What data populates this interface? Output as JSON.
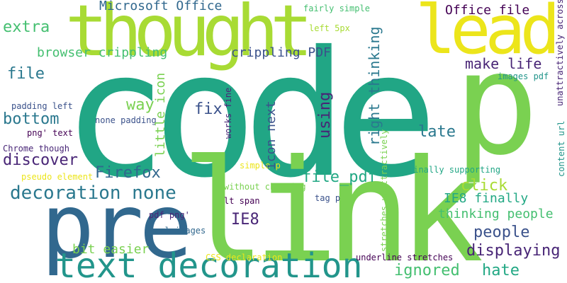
{
  "palette": {
    "teal": "#21a685",
    "lightgreen": "#7ad151",
    "lime": "#a8db34",
    "yellow": "#ece51b",
    "darkblue": "#31688e",
    "navy": "#3b528b",
    "purple": "#482576",
    "darkpurple": "#440154",
    "midteal": "#2a788e",
    "cyan": "#22a884",
    "green": "#44bf70"
  },
  "words": [
    {
      "text": "code",
      "color": "#21a685"
    },
    {
      "text": "p",
      "color": "#7ad151"
    },
    {
      "text": "link",
      "color": "#7ad151"
    },
    {
      "text": "pre",
      "color": "#31688e"
    },
    {
      "text": "thought",
      "color": "#a8db34"
    },
    {
      "text": "lead",
      "color": "#ece51b"
    },
    {
      "text": "text decoration",
      "color": "#22958b"
    },
    {
      "text": "decoration none",
      "color": "#2a788e"
    },
    {
      "text": "Microsoft Office",
      "color": "#31688e"
    },
    {
      "text": "Office file",
      "color": "#440154"
    },
    {
      "text": "crippling PDF",
      "color": "#3b528b"
    },
    {
      "text": "browser crippling",
      "color": "#44bf70"
    },
    {
      "text": "extra",
      "color": "#44bf70"
    },
    {
      "text": "file",
      "color": "#2a788e"
    },
    {
      "text": "bottom",
      "color": "#2a788e"
    },
    {
      "text": "discover",
      "color": "#482576"
    },
    {
      "text": "Firefox",
      "color": "#31688e"
    },
    {
      "text": "way",
      "color": "#7ad151"
    },
    {
      "text": "fix",
      "color": "#3b528b"
    },
    {
      "text": "late",
      "color": "#2a788e"
    },
    {
      "text": "make life",
      "color": "#482576"
    },
    {
      "text": "file_pdf",
      "color": "#22a884"
    },
    {
      "text": "click",
      "color": "#a8db34"
    },
    {
      "text": "IE8 finally",
      "color": "#22a884"
    },
    {
      "text": "IE8",
      "color": "#482576"
    },
    {
      "text": "thinking people",
      "color": "#44bf70"
    },
    {
      "text": "people",
      "color": "#3b528b"
    },
    {
      "text": "displaying",
      "color": "#482576"
    },
    {
      "text": "ignored",
      "color": "#44bf70"
    },
    {
      "text": "hate",
      "color": "#22a884"
    },
    {
      "text": "bit easier",
      "color": "#7ad151"
    },
    {
      "text": "fairly simple",
      "color": "#44bf70"
    },
    {
      "text": "left 5px",
      "color": "#a8db34"
    },
    {
      "text": "images pdf",
      "color": "#22958b"
    },
    {
      "text": "padding left",
      "color": "#3b528b"
    },
    {
      "text": "none padding",
      "color": "#3b528b"
    },
    {
      "text": "png' text",
      "color": "#440154"
    },
    {
      "text": "Chrome though",
      "color": "#482576"
    },
    {
      "text": "pseudo element",
      "color": "#ece51b"
    },
    {
      "text": "simple p",
      "color": "#ece51b"
    },
    {
      "text": "without cheating",
      "color": "#7ad151"
    },
    {
      "text": "lt span",
      "color": "#440154"
    },
    {
      "text": "tag p",
      "color": "#3b528b"
    },
    {
      "text": "finally supporting",
      "color": "#21a685"
    },
    {
      "text": "pdf png'",
      "color": "#482576"
    },
    {
      "text": "url images",
      "color": "#31688e"
    },
    {
      "text": "CSS declaration",
      "color": "#ece51b"
    },
    {
      "text": "underline stretches",
      "color": "#440154"
    },
    {
      "text": "right thinking",
      "color": "#2a788e"
    },
    {
      "text": "little icon",
      "color": "#7ad151"
    },
    {
      "text": "icon next",
      "color": "#3b528b"
    },
    {
      "text": "using",
      "color": "#482576"
    },
    {
      "text": "works fine",
      "color": "#482576"
    },
    {
      "text": "stretches unattractively",
      "color": "#7ad151"
    },
    {
      "text": "unattractively across",
      "color": "#482576"
    },
    {
      "text": "content url",
      "color": "#22958b"
    }
  ]
}
